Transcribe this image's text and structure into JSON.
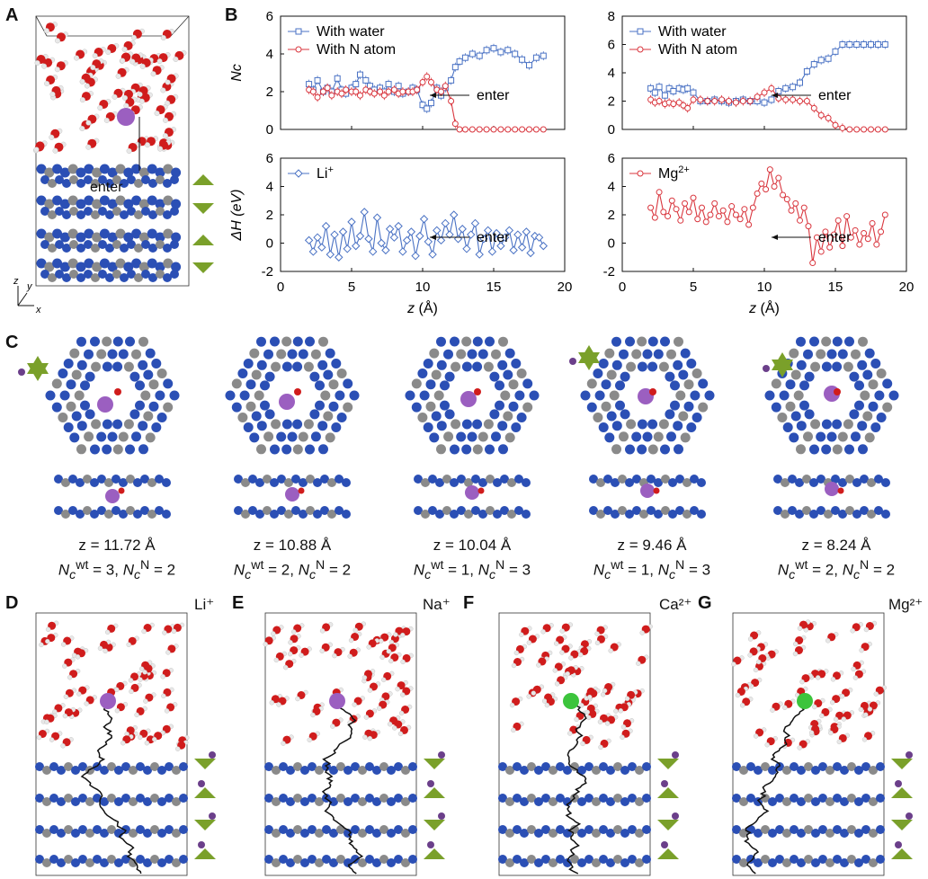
{
  "panels": {
    "a": "A",
    "b": "B",
    "c": "C",
    "d": "D",
    "e": "E",
    "f": "F",
    "g": "G"
  },
  "panel_a": {
    "enter_label": "enter",
    "axis_x": "x",
    "axis_y": "y",
    "axis_z": "z"
  },
  "colors": {
    "water_series": "#4a72c4",
    "n_atom_series": "#d9363e",
    "li_series": "#4a72c4",
    "mg_series": "#d9363e",
    "nitrogen": "#2b4fb5",
    "carbon": "#8a8a8a",
    "oxygen": "#d01c1c",
    "hydrogen": "#e8e8e8",
    "li_ion": "#9b5fc0",
    "ca_ion": "#3cc43c",
    "membrane_marker": "#7aa02a"
  },
  "chart_data": [
    {
      "type": "line",
      "panel": "B-top-left",
      "ylabel": "Nc",
      "ylim": [
        0,
        6
      ],
      "yticks": [
        "0",
        "2",
        "4",
        "6"
      ],
      "annotation": "enter",
      "series": [
        {
          "name": "With water",
          "x": [
            2,
            2.3,
            2.6,
            3,
            3.3,
            3.6,
            4,
            4.3,
            4.6,
            5,
            5.3,
            5.6,
            6,
            6.3,
            6.6,
            7,
            7.3,
            7.6,
            8,
            8.3,
            8.6,
            9,
            9.3,
            9.6,
            10,
            10.3,
            10.6,
            11,
            11.3,
            11.6,
            12,
            12.3,
            12.6,
            13,
            13.5,
            14,
            14.5,
            15,
            15.5,
            16,
            16.5,
            17,
            17.5,
            18,
            18.5
          ],
          "values": [
            2.4,
            2.1,
            2.6,
            2.0,
            2.2,
            2.0,
            2.7,
            2.1,
            1.9,
            2.2,
            2.4,
            2.9,
            2.6,
            2.3,
            2.1,
            2.2,
            2.0,
            2.4,
            2.0,
            2.3,
            1.9,
            2.0,
            2.2,
            2.1,
            1.3,
            1.1,
            1.4,
            2.2,
            1.8,
            2.2,
            2.6,
            3.3,
            3.6,
            3.8,
            4.0,
            3.9,
            4.2,
            4.3,
            4.1,
            4.2,
            4.0,
            3.7,
            3.4,
            3.8,
            3.9
          ]
        },
        {
          "name": "With N atom",
          "x": [
            2,
            2.3,
            2.6,
            3,
            3.3,
            3.6,
            4,
            4.3,
            4.6,
            5,
            5.3,
            5.6,
            6,
            6.3,
            6.6,
            7,
            7.3,
            7.6,
            8,
            8.3,
            8.6,
            9,
            9.3,
            9.6,
            10,
            10.3,
            10.6,
            11,
            11.3,
            11.6,
            12,
            12.3,
            12.6,
            13,
            13.5,
            14,
            14.5,
            15,
            15.5,
            16,
            16.5,
            17,
            17.5,
            18,
            18.5
          ],
          "values": [
            2.1,
            2.0,
            1.7,
            2.0,
            2.2,
            1.8,
            2.0,
            1.9,
            2.1,
            2.0,
            2.0,
            1.8,
            2.1,
            2.0,
            1.9,
            2.0,
            1.8,
            2.0,
            2.1,
            1.9,
            2.0,
            2.0,
            2.0,
            2.1,
            2.5,
            2.8,
            2.5,
            2.1,
            2.0,
            2.3,
            1.5,
            0.3,
            0,
            0,
            0,
            0,
            0,
            0,
            0,
            0,
            0,
            0,
            0,
            0,
            0
          ]
        }
      ]
    },
    {
      "type": "line",
      "panel": "B-top-right",
      "ylabel": "",
      "ylim": [
        0,
        8
      ],
      "yticks": [
        "0",
        "2",
        "4",
        "6",
        "8"
      ],
      "annotation": "enter",
      "series": [
        {
          "name": "With water",
          "x": [
            2,
            2.3,
            2.6,
            3,
            3.3,
            3.6,
            4,
            4.3,
            4.6,
            5,
            5.5,
            6,
            6.5,
            7,
            7.5,
            8,
            8.5,
            9,
            9.5,
            10,
            10.5,
            11,
            11.5,
            12,
            12.5,
            13,
            13.5,
            14,
            14.5,
            15,
            15.5,
            16,
            16.5,
            17,
            17.5,
            18,
            18.5
          ],
          "values": [
            2.9,
            2.6,
            3.0,
            2.4,
            2.9,
            2.7,
            2.9,
            2.8,
            2.9,
            2.6,
            2.0,
            2.0,
            2.1,
            2.0,
            1.9,
            2.0,
            2.1,
            2.0,
            2.0,
            1.9,
            2.1,
            2.7,
            2.9,
            3.0,
            3.3,
            4.1,
            4.6,
            4.9,
            5.0,
            5.5,
            6.0,
            6.0,
            6.0,
            6.0,
            6.0,
            6.0,
            6.0
          ]
        },
        {
          "name": "With N atom",
          "x": [
            2,
            2.3,
            2.6,
            3,
            3.3,
            3.6,
            4,
            4.3,
            4.6,
            5,
            5.5,
            6,
            6.5,
            7,
            7.5,
            8,
            8.5,
            9,
            9.5,
            10,
            10.5,
            11,
            11.5,
            12,
            12.5,
            13,
            13.5,
            14,
            14.5,
            15,
            15.5,
            16,
            16.5,
            17,
            17.5,
            18,
            18.5
          ],
          "values": [
            2.1,
            1.9,
            2.0,
            1.8,
            1.9,
            1.8,
            1.9,
            1.7,
            1.5,
            2.1,
            2.1,
            2.0,
            2.0,
            2.1,
            2.0,
            1.9,
            2.0,
            2.0,
            2.3,
            2.6,
            2.9,
            2.2,
            2.1,
            2.1,
            2.0,
            2.0,
            1.5,
            1.0,
            0.8,
            0.3,
            0.1,
            0,
            0,
            0,
            0,
            0,
            0
          ]
        }
      ]
    },
    {
      "type": "line",
      "panel": "B-bottom-left",
      "ylabel": "ΔH (eV)",
      "xlabel": "z (Å)",
      "xlim": [
        0,
        20
      ],
      "ylim": [
        -2,
        6
      ],
      "yticks": [
        "-2",
        "0",
        "2",
        "4",
        "6"
      ],
      "xticks": [
        "0",
        "5",
        "10",
        "15",
        "20"
      ],
      "annotation": "enter",
      "series": [
        {
          "name": "Li+",
          "x": [
            2,
            2.3,
            2.6,
            2.9,
            3.2,
            3.5,
            3.8,
            4.1,
            4.4,
            4.7,
            5,
            5.3,
            5.6,
            5.9,
            6.2,
            6.5,
            6.8,
            7.1,
            7.4,
            7.7,
            8,
            8.3,
            8.6,
            8.9,
            9.2,
            9.5,
            9.8,
            10.1,
            10.4,
            10.7,
            11,
            11.3,
            11.6,
            11.9,
            12.2,
            12.5,
            12.8,
            13.1,
            13.4,
            13.7,
            14,
            14.3,
            14.6,
            14.9,
            15.2,
            15.5,
            15.8,
            16.1,
            16.4,
            16.7,
            17,
            17.3,
            17.6,
            17.9,
            18.2,
            18.5
          ],
          "values": [
            0.2,
            -0.6,
            0.4,
            -0.3,
            1.2,
            -0.8,
            0.6,
            -1.0,
            0.8,
            -0.4,
            1.5,
            -0.2,
            0.5,
            2.2,
            0.3,
            -0.6,
            1.8,
            0.0,
            -0.5,
            1.0,
            0.4,
            1.2,
            -0.6,
            0.2,
            0.8,
            -0.9,
            0.5,
            1.7,
            0.1,
            -0.8,
            0.9,
            0.2,
            1.4,
            0.6,
            2.0,
            0.3,
            1.0,
            -0.4,
            0.6,
            1.4,
            -0.8,
            0.3,
            0.9,
            -0.6,
            0.7,
            -0.2,
            0.4,
            0.9,
            -0.5,
            0.6,
            -0.3,
            0.8,
            -0.7,
            0.5,
            0.4,
            -0.2
          ]
        }
      ]
    },
    {
      "type": "line",
      "panel": "B-bottom-right",
      "ylabel": "",
      "xlabel": "z (Å)",
      "xlim": [
        0,
        20
      ],
      "ylim": [
        -2,
        6
      ],
      "yticks": [
        "-2",
        "0",
        "2",
        "4",
        "6"
      ],
      "xticks": [
        "0",
        "5",
        "10",
        "15",
        "20"
      ],
      "annotation": "enter",
      "series": [
        {
          "name": "Mg2+",
          "x": [
            2,
            2.3,
            2.6,
            2.9,
            3.2,
            3.5,
            3.8,
            4.1,
            4.4,
            4.7,
            5,
            5.3,
            5.6,
            5.9,
            6.2,
            6.5,
            6.8,
            7.1,
            7.4,
            7.7,
            8,
            8.3,
            8.6,
            8.9,
            9.2,
            9.5,
            9.8,
            10.1,
            10.4,
            10.7,
            11,
            11.3,
            11.6,
            11.9,
            12.2,
            12.5,
            12.8,
            13.1,
            13.4,
            13.7,
            14,
            14.3,
            14.6,
            14.9,
            15.2,
            15.5,
            15.8,
            16.1,
            16.4,
            16.7,
            17,
            17.3,
            17.6,
            17.9,
            18.2,
            18.5
          ],
          "values": [
            2.5,
            1.8,
            3.6,
            2.2,
            1.9,
            3.0,
            2.4,
            1.6,
            2.8,
            2.2,
            3.2,
            1.7,
            2.5,
            1.5,
            2.0,
            2.8,
            1.9,
            2.3,
            1.5,
            2.6,
            2.0,
            1.7,
            2.4,
            1.3,
            2.5,
            3.5,
            4.2,
            3.8,
            5.2,
            4.0,
            4.6,
            3.4,
            3.1,
            2.3,
            2.8,
            1.6,
            2.5,
            1.2,
            -1.4,
            0.4,
            -0.6,
            0.8,
            -0.3,
            0.6,
            1.6,
            -0.2,
            1.9,
            0.4,
            0.9,
            -0.1,
            0.7,
            0.3,
            1.4,
            -0.1,
            0.8,
            2.0
          ]
        }
      ]
    }
  ],
  "panel_c": {
    "structures": [
      {
        "z_text": "z = 11.72 Å",
        "z_value": 11.72,
        "nc_wt": 3,
        "nc_n": 2
      },
      {
        "z_text": "z = 10.88 Å",
        "z_value": 10.88,
        "nc_wt": 2,
        "nc_n": 2
      },
      {
        "z_text": "z = 10.04 Å",
        "z_value": 10.04,
        "nc_wt": 1,
        "nc_n": 3
      },
      {
        "z_text": "z = 9.46 Å",
        "z_value": 9.46,
        "nc_wt": 1,
        "nc_n": 3
      },
      {
        "z_text": "z = 8.24 Å",
        "z_value": 8.24,
        "nc_wt": 2,
        "nc_n": 2
      }
    ]
  },
  "ion_panels": [
    {
      "letter": "D",
      "ion": "Li⁺",
      "ion_color": "#9b5fc0"
    },
    {
      "letter": "E",
      "ion": "Na⁺",
      "ion_color": "#9b5fc0"
    },
    {
      "letter": "F",
      "ion": "Ca²⁺",
      "ion_color": "#3cc43c"
    },
    {
      "letter": "G",
      "ion": "Mg²⁺",
      "ion_color": "#3cc43c"
    }
  ]
}
